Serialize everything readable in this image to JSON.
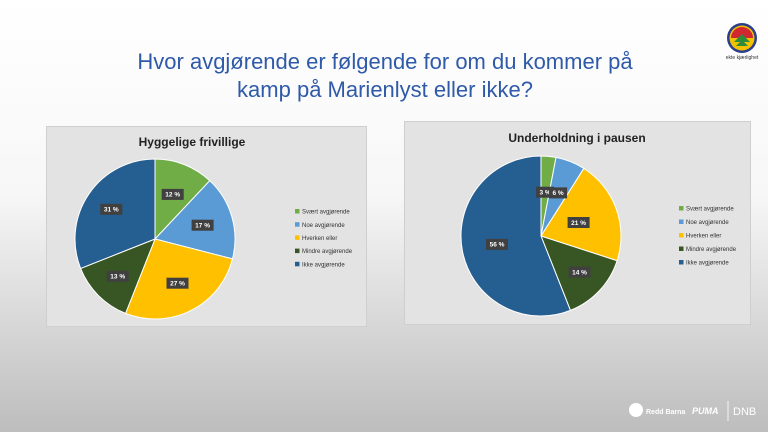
{
  "slide": {
    "title_line1": "Hvor avgjørende er følgende for om du kommer på",
    "title_line2": "kamp på Marienlyst eller ikke?"
  },
  "logo": {
    "caption": "ekte kjærlighet"
  },
  "sponsors": {
    "redd_barna": "Redd Barna",
    "puma": "PUMA",
    "dnb": "DNB"
  },
  "colors": {
    "svaert": "#70ad47",
    "noe": "#5b9bd5",
    "hverken": "#ffc000",
    "mindre": "#375623",
    "ikke": "#255e91"
  },
  "chart_data": [
    {
      "type": "pie",
      "title": "Hyggelige frivillige",
      "categories": [
        "Svært avgjørende",
        "Noe avgjørende",
        "Hverken eller",
        "Mindre avgjørende",
        "Ikke avgjørende"
      ],
      "values": [
        12,
        17,
        27,
        13,
        31
      ],
      "data_labels": [
        "12 %",
        "17 %",
        "27 %",
        "13 %",
        "31 %"
      ],
      "legend_position": "right"
    },
    {
      "type": "pie",
      "title": "Underholdning i pausen",
      "categories": [
        "Svært avgjørende",
        "Noe avgjørende",
        "Hverken eller",
        "Mindre avgjørende",
        "Ikke avgjørende"
      ],
      "values": [
        3,
        6,
        21,
        14,
        56
      ],
      "data_labels": [
        "3 %",
        "6 %",
        "21 %",
        "14 %",
        "56 %"
      ],
      "legend_position": "right"
    }
  ]
}
